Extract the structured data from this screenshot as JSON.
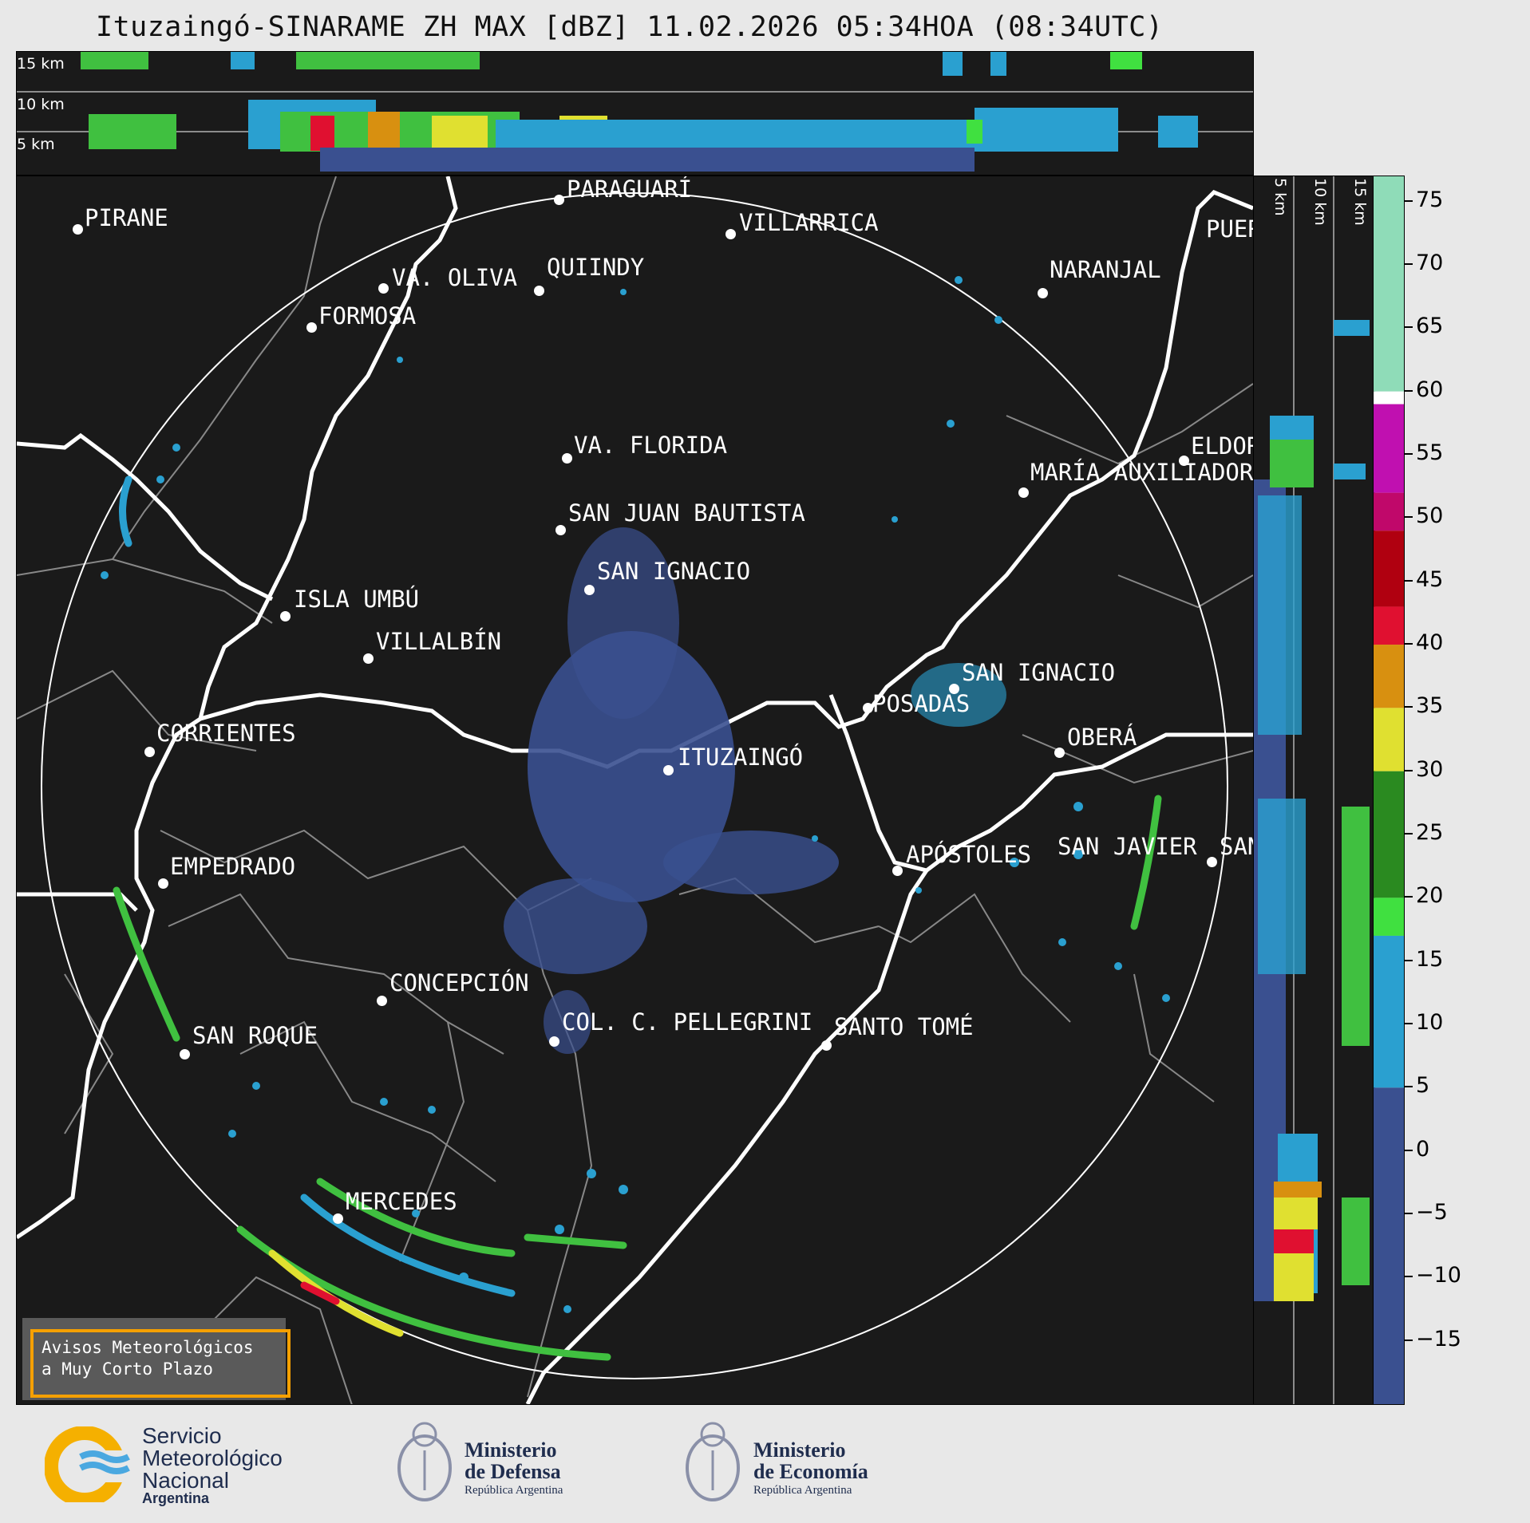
{
  "header": {
    "title": "Ituzaingó-SINARAME ZH MAX [dBZ] 11.02.2026 05:34HOA (08:34UTC)"
  },
  "top_section": {
    "altitude_labels": [
      "15 km",
      "10 km",
      "5 km"
    ]
  },
  "side_section": {
    "altitude_labels": [
      "5 km",
      "10 km",
      "15 km"
    ]
  },
  "map": {
    "cities": [
      {
        "name": "PIRANE"
      },
      {
        "name": "PARAGUARÍ"
      },
      {
        "name": "VILLARRICA"
      },
      {
        "name": "QUIINDY"
      },
      {
        "name": "VA. OLIVA"
      },
      {
        "name": "NARANJAL"
      },
      {
        "name": "FORMOSA"
      },
      {
        "name": "VA. FLORIDA"
      },
      {
        "name": "ELDOR"
      },
      {
        "name": "MARÍA AUXILIADOR"
      },
      {
        "name": "SAN JUAN BAUTISTA"
      },
      {
        "name": "SAN IGNACIO"
      },
      {
        "name": "ISLA UMBÚ"
      },
      {
        "name": "VILLALBÍN"
      },
      {
        "name": "SAN IGNACIO"
      },
      {
        "name": "POSADAS"
      },
      {
        "name": "CORRIENTES"
      },
      {
        "name": "ITUZAINGÓ"
      },
      {
        "name": "OBERÁ"
      },
      {
        "name": "EMPEDRADO"
      },
      {
        "name": "APÓSTOLES"
      },
      {
        "name": "SAN JAVIER"
      },
      {
        "name": "SAN"
      },
      {
        "name": "CONCEPCIÓN"
      },
      {
        "name": "COL. C. PELLEGRINI"
      },
      {
        "name": "SANTO TOMÉ"
      },
      {
        "name": "SAN ROQUE"
      },
      {
        "name": "MERCEDES"
      },
      {
        "name": "PUER"
      }
    ]
  },
  "colorbar": {
    "unit": "dBZ",
    "min": -20,
    "max": 77,
    "ticks": [
      "75",
      "70",
      "65",
      "60",
      "55",
      "50",
      "45",
      "40",
      "35",
      "30",
      "25",
      "20",
      "15",
      "10",
      "5",
      "0",
      "−5",
      "−10",
      "−15"
    ],
    "segments": [
      {
        "from": 60,
        "to": 77,
        "color": "#8fdcb8"
      },
      {
        "from": 59,
        "to": 60,
        "color": "#ffffff"
      },
      {
        "from": 52,
        "to": 59,
        "color": "#c010b0"
      },
      {
        "from": 49,
        "to": 52,
        "color": "#c0086a"
      },
      {
        "from": 43,
        "to": 49,
        "color": "#b00010"
      },
      {
        "from": 40,
        "to": 43,
        "color": "#e01030"
      },
      {
        "from": 35,
        "to": 40,
        "color": "#d89010"
      },
      {
        "from": 30,
        "to": 35,
        "color": "#e0e030"
      },
      {
        "from": 20,
        "to": 30,
        "color": "#2a8a20"
      },
      {
        "from": 17,
        "to": 20,
        "color": "#40e040"
      },
      {
        "from": 5,
        "to": 17,
        "color": "#2aa0d0"
      },
      {
        "from": -20,
        "to": 5,
        "color": "#3a5090"
      }
    ]
  },
  "legend": {
    "line1": "Avisos Meteorológicos",
    "line2": "a Muy Corto Plazo"
  },
  "footer": {
    "smn": {
      "line1": "Servicio",
      "line2": "Meteorológico",
      "line3": "Nacional",
      "line4": "Argentina"
    },
    "defensa": {
      "line1": "Ministerio",
      "line2": "de Defensa",
      "line3": "República Argentina"
    },
    "economia": {
      "line1": "Ministerio",
      "line2": "de Economía",
      "line3": "República Argentina"
    }
  }
}
